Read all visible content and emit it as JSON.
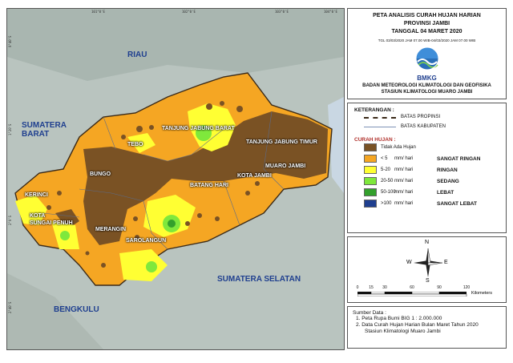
{
  "map": {
    "regions": {
      "riau": "RIAU",
      "sumbar": "SUMATERA\nBARAT",
      "sumsel": "SUMATERA SELATAN",
      "bengkulu": "BENGKULU"
    },
    "kabupaten": {
      "tebo": "TEBO",
      "tanjab_barat": "TANJUNG JABUNG BARAT",
      "tanjab_timur": "TANJUNG JABUNG TIMUR",
      "bungo": "BUNGO",
      "muaro_jambi": "MUARO JAMBI",
      "kota_jambi": "KOTA JAMBI",
      "batang_hari": "BATANG HARI",
      "kerinci": "KERINCI",
      "sungai_penuh": "KOTA\nSUNGAI PENUH",
      "merangin": "MERANGIN",
      "sarolangun": "SAROLANGUN"
    },
    "coords": {
      "top": [
        "101°0'E",
        "102°0'E",
        "103°0'E",
        "104°0'E"
      ],
      "left": [
        "0°40'S",
        "1°20'S",
        "2°0'S",
        "2°40'S"
      ]
    }
  },
  "title": {
    "line1": "PETA ANALISIS CURAH HUJAN HARIAN",
    "line2": "PROVINSI JAMBI",
    "line3": "TANGGAL 04 MARET 2020",
    "period": "TGL 03/03/2020 JAM 07.00 WIB-04/03/2020 JAM 07.00 WIB",
    "logo_text": "BMKG",
    "agency1": "BADAN METEOROLOGI KLIMATOLOGI DAN GEOFISIKA",
    "agency2": "STASIUN KLIMATOLOGI MUARO JAMBI"
  },
  "legend": {
    "heading": "KETERANGAN :",
    "batas_propinsi": "BATAS PROPINSI",
    "batas_kabupaten": "BATAS KABUPATEN",
    "rain_heading": "CURAH HUJAN :",
    "classes": [
      {
        "range": "Tidak Ada Hujan",
        "unit": "",
        "category": "",
        "color": "#7a5224"
      },
      {
        "range": "< 5",
        "unit": "mm/ hari",
        "category": "SANGAT RINGAN",
        "color": "#f5a623"
      },
      {
        "range": "5-20",
        "unit": "mm/ hari",
        "category": "RINGAN",
        "color": "#ffff33"
      },
      {
        "range": "20-50",
        "unit": "mm/ hari",
        "category": "SEDANG",
        "color": "#7fe83c"
      },
      {
        "range": "50-100",
        "unit": "mm/ hari",
        "category": "LEBAT",
        "color": "#33a02c"
      },
      {
        "range": ">100",
        "unit": "mm/ hari",
        "category": "SANGAT LEBAT",
        "color": "#1f3f8f"
      }
    ]
  },
  "compass": {
    "n": "N",
    "s": "S",
    "e": "E",
    "w": "W"
  },
  "scale": {
    "ticks": [
      "0",
      "15",
      "30",
      "60",
      "90",
      "120"
    ],
    "unit": "Kilometers"
  },
  "source": {
    "heading": "Sumber Data :",
    "item1": "1. Peta Rupa Bumi BIG 1 : 2.000.000",
    "item2": "2. Data Curah Hujan Harian Bulan Maret Tahun 2020",
    "item2b": "Stasiun Klimatologi Muaro Jambi"
  }
}
